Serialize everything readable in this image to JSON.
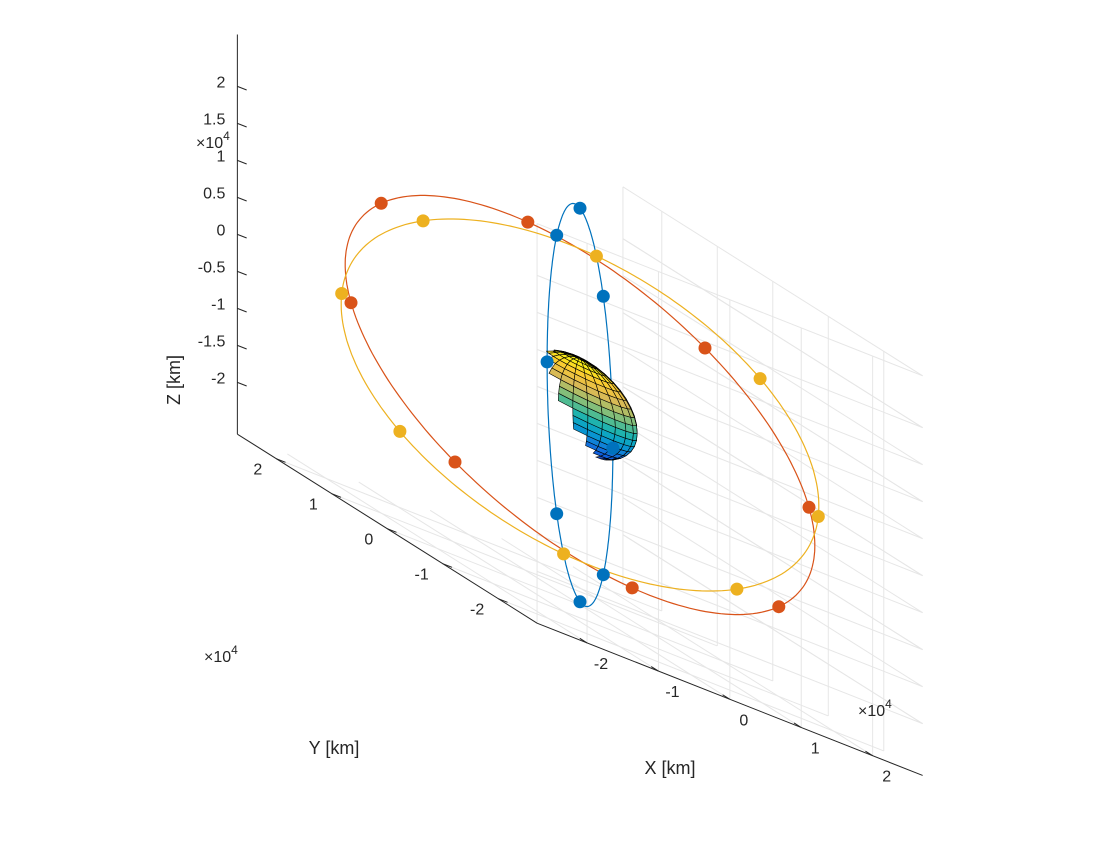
{
  "chart_data": {
    "type": "scatter3d",
    "title": "",
    "xlabel": "X [km]",
    "ylabel": "Y [km]",
    "zlabel": "Z [km]",
    "exponent_label": {
      "base": "×10",
      "power": "4"
    },
    "x_ticks": [
      "-2",
      "-1",
      "0",
      "1",
      "2"
    ],
    "y_ticks": [
      "-2",
      "-1",
      "0",
      "1",
      "2"
    ],
    "z_ticks": [
      "2",
      "1.5",
      "1",
      "0.5",
      "0",
      "-0.5",
      "-1",
      "-1.5",
      "-2"
    ],
    "xlim": [
      -2.7,
      2.7
    ],
    "ylim": [
      -2.7,
      2.7
    ],
    "zlim": [
      -2.7,
      2.7
    ],
    "grid": true,
    "legend": null,
    "earth": {
      "radius": 0.637,
      "colormap": "parula"
    },
    "orbit_radius": 2.66,
    "series": [
      {
        "color": "#0072BD",
        "inclination_deg": 90,
        "raan_deg": 60,
        "phase_deg": 0,
        "satellites": 8
      },
      {
        "color": "#D95319",
        "inclination_deg": 45,
        "raan_deg": -20,
        "phase_deg": 0,
        "satellites": 8
      },
      {
        "color": "#EDB120",
        "inclination_deg": 60,
        "raan_deg": 150,
        "phase_deg": 0,
        "satellites": 8
      }
    ]
  }
}
